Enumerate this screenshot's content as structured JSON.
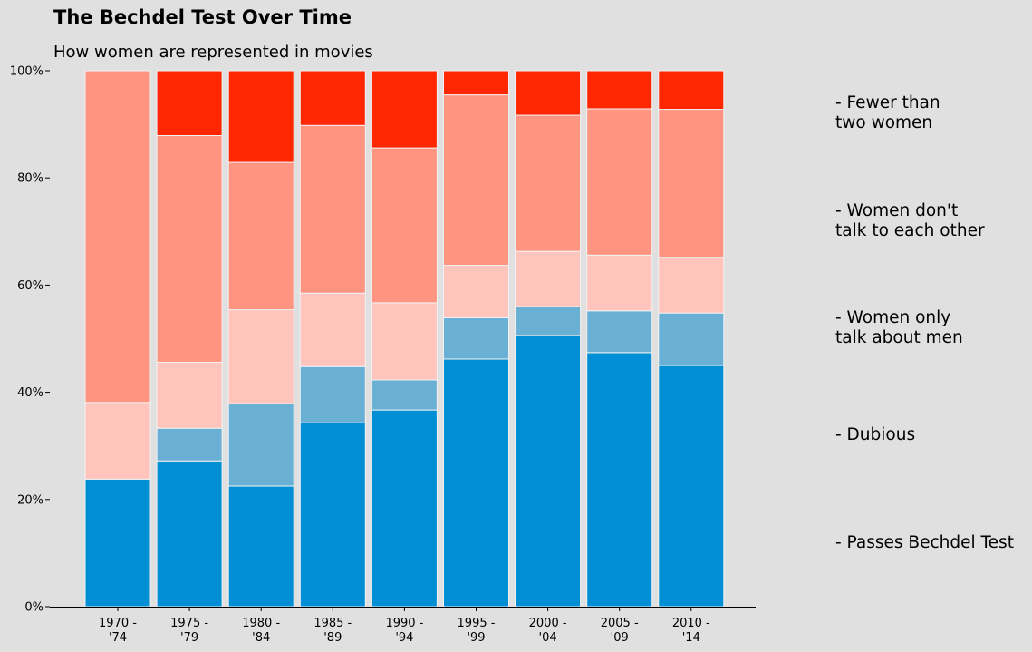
{
  "chart_data": {
    "type": "bar",
    "stacked": true,
    "title": "The Bechdel Test Over Time",
    "subtitle": "How women are represented in movies",
    "xlabel": "",
    "ylabel": "",
    "ylim": [
      0,
      100
    ],
    "y_ticks": [
      "0%",
      "20%",
      "40%",
      "60%",
      "80%",
      "100%"
    ],
    "y_tick_values": [
      0,
      20,
      40,
      60,
      80,
      100
    ],
    "categories": [
      [
        "1970 -",
        "'74"
      ],
      [
        "1975 -",
        "'79"
      ],
      [
        "1980 -",
        "'84"
      ],
      [
        "1985 -",
        "'89"
      ],
      [
        "1990 -",
        "'94"
      ],
      [
        "1995 -",
        "'99"
      ],
      [
        "2000 -",
        "'04"
      ],
      [
        "2005 -",
        "'09"
      ],
      [
        "2010 -",
        "'14"
      ]
    ],
    "series": [
      {
        "name": "- Passes Bechdel Test",
        "color": "#008fd5",
        "values": [
          23.8,
          27.2,
          22.5,
          34.3,
          36.7,
          46.2,
          50.6,
          47.4,
          45.0
        ]
      },
      {
        "name": "- Dubious",
        "color": "#6ab0d5",
        "values": [
          0.0,
          6.1,
          15.4,
          10.5,
          5.6,
          7.7,
          5.4,
          7.8,
          9.8
        ]
      },
      {
        "name": "- Women only talk about men",
        "color": "#ffc4bc",
        "values": [
          14.3,
          12.3,
          17.5,
          13.7,
          14.4,
          9.8,
          10.3,
          10.4,
          10.4
        ]
      },
      {
        "name": "- Women don't talk to each other",
        "color": "#ff9480",
        "values": [
          61.9,
          42.3,
          27.5,
          31.3,
          28.9,
          31.8,
          25.4,
          27.3,
          27.6
        ]
      },
      {
        "name": "- Fewer than two women",
        "color": "#ff2700",
        "values": [
          0.0,
          12.1,
          17.1,
          10.2,
          14.4,
          4.5,
          8.3,
          7.1,
          7.2
        ]
      }
    ],
    "legend": {
      "placement": "right",
      "entries": [
        [
          "- Fewer than",
          "two women"
        ],
        [
          "- Women don't",
          "talk to each other"
        ],
        [
          "- Women only",
          "talk about men"
        ],
        [
          "- Dubious"
        ],
        [
          "- Passes Bechdel Test"
        ]
      ]
    },
    "grid": false
  }
}
